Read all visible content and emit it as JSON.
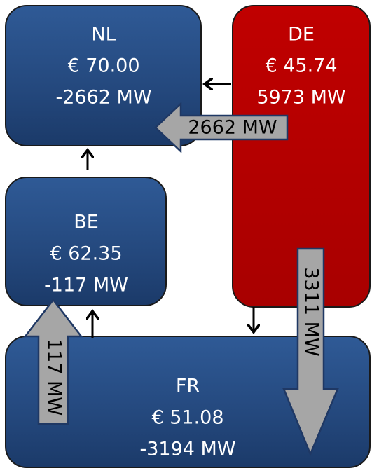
{
  "nodes": [
    {
      "name": "NL",
      "price": "€ 70.00",
      "flow": "-2662 MW"
    },
    {
      "name": "DE",
      "price": "€ 45.74",
      "flow": "5973 MW"
    },
    {
      "name": "BE",
      "price": "€ 62.35",
      "flow": "-117 MW"
    },
    {
      "name": "FR",
      "price": "€ 51.08",
      "flow": "-3194 MW"
    }
  ],
  "flows": [
    {
      "label": "2662 MW"
    },
    {
      "label": "3311 MW"
    },
    {
      "label": "117 MW"
    }
  ]
}
